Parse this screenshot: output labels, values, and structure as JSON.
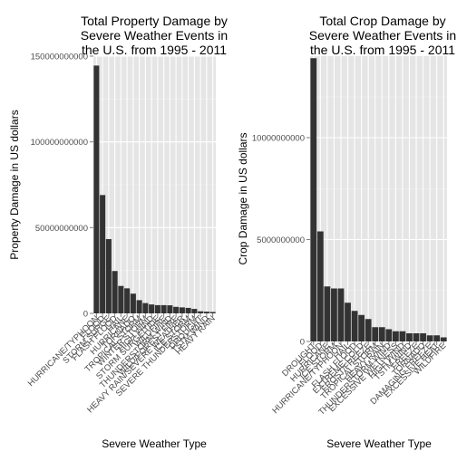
{
  "chart_data": [
    {
      "type": "bar",
      "title_lines": [
        "Total Property Damage by",
        "Severe Weather Events in",
        "the U.S. from 1995 - 2011"
      ],
      "xlabel": "Severe Weather Type",
      "ylabel": "Property Damage in US dollars",
      "ylim": [
        0,
        150000000000
      ],
      "yticks": [
        0,
        50000000000,
        100000000000,
        150000000000
      ],
      "ytick_labels": [
        "0",
        "50000000000",
        "100000000000",
        "150000000000"
      ],
      "grid": true,
      "categories": [
        "HURRICANE/TYPHOON",
        "FLOOD",
        "STORM SURGE",
        "FLASH FLOOD",
        "HAIL",
        "HURRICANE",
        "TORNADO",
        "TROPICAL STORM",
        "WINTER STORM",
        "HIGH WIND",
        "STORM SURGE/TIDE",
        "WILDFIRE",
        "THUNDERSTORM WIND",
        "WILD/FOREST FIRE",
        "HEAVY RAIN/SEVERE WEATHER",
        "ICE STORM",
        "SEVERE THUNDERSTORM",
        "DROUGHT",
        "TSTM WIND",
        "HEAVY RAIN"
      ],
      "values": [
        144500000000,
        69000000000,
        43300000000,
        24700000000,
        16000000000,
        14600000000,
        11500000000,
        7700000000,
        6000000000,
        5200000000,
        4800000000,
        4800000000,
        4700000000,
        3800000000,
        3500000000,
        3200000000,
        2600000000,
        1200000000,
        1000000000,
        800000000
      ]
    },
    {
      "type": "bar",
      "title_lines": [
        "Total Crop Damage by",
        "Severe Weather Events in",
        "the U.S. from 1995 - 2011"
      ],
      "xlabel": "Severe Weather Type",
      "ylabel": "Crop Damage in US dollars",
      "ylim": [
        0,
        14000000000
      ],
      "yticks": [
        0,
        5000000000,
        10000000000
      ],
      "ytick_labels": [
        "0",
        "5000000000",
        "10000000000"
      ],
      "grid": true,
      "categories": [
        "DROUGHT",
        "FLOOD",
        "HURRICANE",
        "ICE STORM",
        "HURRICANE/TYPHOON",
        "HAIL",
        "FLASH FLOOD",
        "EXTREME COLD",
        "FROST/FREEZE",
        "TROPICAL STORM",
        "HEAVY RAIN",
        "THUNDERSTORM WIND",
        "EXCESSIVE WETNESS",
        "HIGH WIND",
        "TSTM WIND",
        "FREEZE",
        "TORNADO",
        "DAMAGING FREEZE",
        "EXCESSIVE HEAT",
        "WILDFIRE"
      ],
      "values": [
        13900000000,
        5400000000,
        2700000000,
        2600000000,
        2600000000,
        1900000000,
        1500000000,
        1300000000,
        1100000000,
        700000000,
        700000000,
        600000000,
        500000000,
        500000000,
        400000000,
        400000000,
        400000000,
        300000000,
        300000000,
        200000000
      ]
    }
  ]
}
